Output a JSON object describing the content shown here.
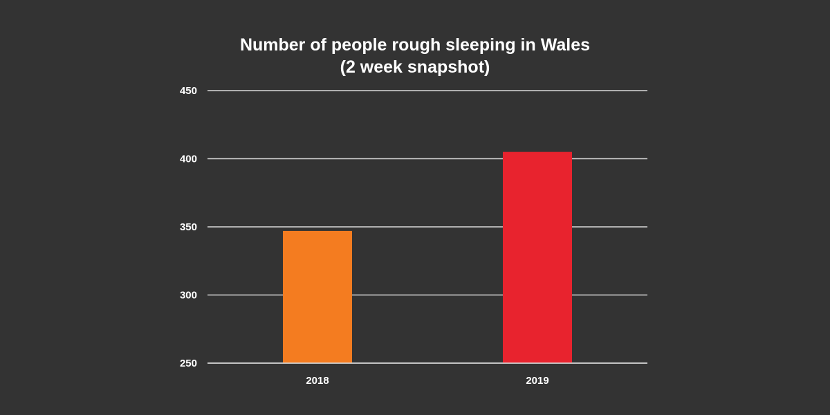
{
  "chart_data": {
    "type": "bar",
    "title_lines": [
      "Number of people rough sleeping in Wales",
      "(2 week snapshot)"
    ],
    "categories": [
      "2018",
      "2019"
    ],
    "values": [
      347,
      405
    ],
    "colors": [
      "#f47c20",
      "#e8232e"
    ],
    "ylim": [
      250,
      450
    ],
    "yticks": [
      "450",
      "400",
      "350",
      "300",
      "250"
    ],
    "ytick_values": [
      450,
      400,
      350,
      300,
      250
    ],
    "grid": true,
    "legend": "none",
    "background": "#333333"
  }
}
